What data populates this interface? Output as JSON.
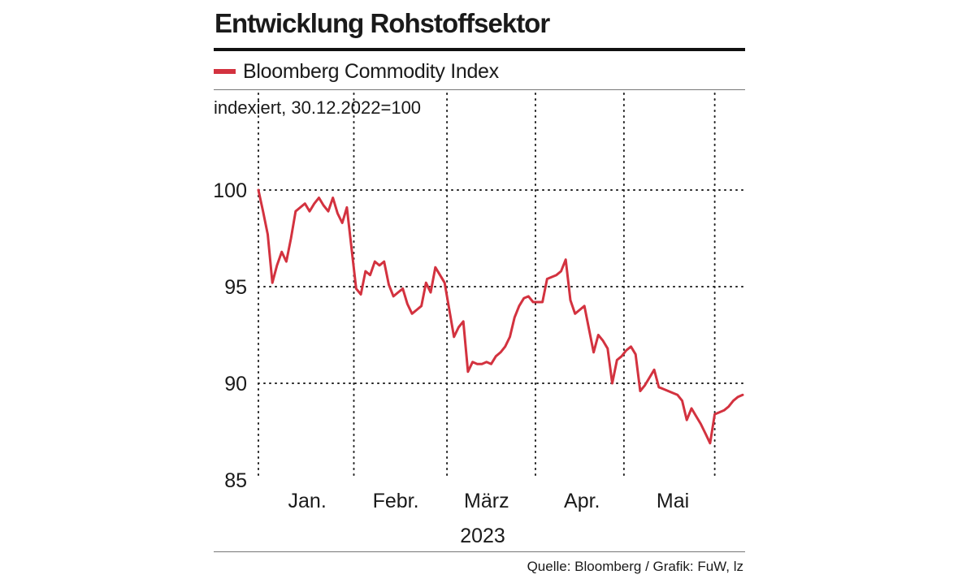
{
  "title": "Entwicklung Rohstoffsektor",
  "legend": {
    "label": "Bloomberg Commodity Index",
    "color": "#d3323f"
  },
  "source": "Quelle: Bloomberg / Grafik: FuW, lz",
  "chart_data": {
    "type": "line",
    "title": "Entwicklung Rohstoffsektor",
    "ylabel": "indexiert, 30.12.2022=100",
    "xlabel": "2023",
    "ylim": [
      85,
      105
    ],
    "yticks": [
      85,
      90,
      95,
      100
    ],
    "x_unit": "trading days since 30.12.2022 (0 = 30.12.2022, 104 = 31.05.2023)",
    "xlim": [
      0,
      104
    ],
    "month_labels": [
      "Jan.",
      "Febr.",
      "März",
      "Apr.",
      "Mai"
    ],
    "month_label_positions": [
      10.5,
      29.5,
      49,
      69.5,
      89
    ],
    "month_boundaries": [
      0,
      20.5,
      40.5,
      59.5,
      78.5,
      98
    ],
    "grid": true,
    "series": [
      {
        "name": "Bloomberg Commodity Index",
        "color": "#d3323f",
        "x": [
          0,
          1,
          2,
          3,
          4,
          5,
          6,
          7,
          8,
          9,
          10,
          11,
          12,
          13,
          14,
          15,
          16,
          17,
          18,
          19,
          20,
          21,
          22,
          23,
          24,
          25,
          26,
          27,
          28,
          29,
          30,
          31,
          32,
          33,
          34,
          35,
          36,
          37,
          38,
          39,
          40,
          41,
          42,
          43,
          44,
          45,
          46,
          47,
          48,
          49,
          50,
          51,
          52,
          53,
          54,
          55,
          56,
          57,
          58,
          59,
          60,
          61,
          62,
          63,
          64,
          65,
          66,
          67,
          68,
          69,
          70,
          71,
          72,
          73,
          74,
          75,
          76,
          77,
          78,
          79,
          80,
          81,
          82,
          83,
          84,
          85,
          86,
          87,
          88,
          89,
          90,
          91,
          92,
          93,
          94,
          95,
          96,
          97,
          98,
          99,
          100,
          101,
          102,
          103,
          104
        ],
        "values": [
          100.0,
          98.9,
          97.7,
          95.2,
          96.1,
          96.8,
          96.3,
          97.5,
          98.9,
          99.1,
          99.3,
          98.9,
          99.3,
          99.6,
          99.2,
          98.9,
          99.6,
          98.8,
          98.3,
          99.1,
          97.0,
          94.9,
          94.6,
          95.8,
          95.6,
          96.3,
          96.1,
          96.3,
          95.1,
          94.5,
          94.7,
          94.9,
          94.1,
          93.6,
          93.8,
          94.0,
          95.2,
          94.7,
          96.0,
          95.6,
          95.2,
          93.8,
          92.4,
          92.9,
          93.2,
          90.6,
          91.1,
          91.0,
          91.0,
          91.1,
          91.0,
          91.4,
          91.6,
          91.9,
          92.4,
          93.4,
          94.0,
          94.4,
          94.5,
          94.2,
          94.2,
          94.2,
          95.4,
          95.5,
          95.6,
          95.8,
          96.4,
          94.3,
          93.6,
          93.8,
          94.0,
          92.8,
          91.6,
          92.5,
          92.2,
          91.8,
          90.0,
          91.2,
          91.4,
          91.7,
          91.9,
          91.5,
          89.6,
          89.9,
          90.3,
          90.7,
          89.8,
          89.7,
          89.6,
          89.5,
          89.4,
          89.1,
          88.1,
          88.7,
          88.3,
          87.9,
          87.4,
          86.9,
          88.4,
          88.5,
          88.6,
          88.8,
          89.1,
          89.3,
          89.4
        ]
      }
    ]
  }
}
